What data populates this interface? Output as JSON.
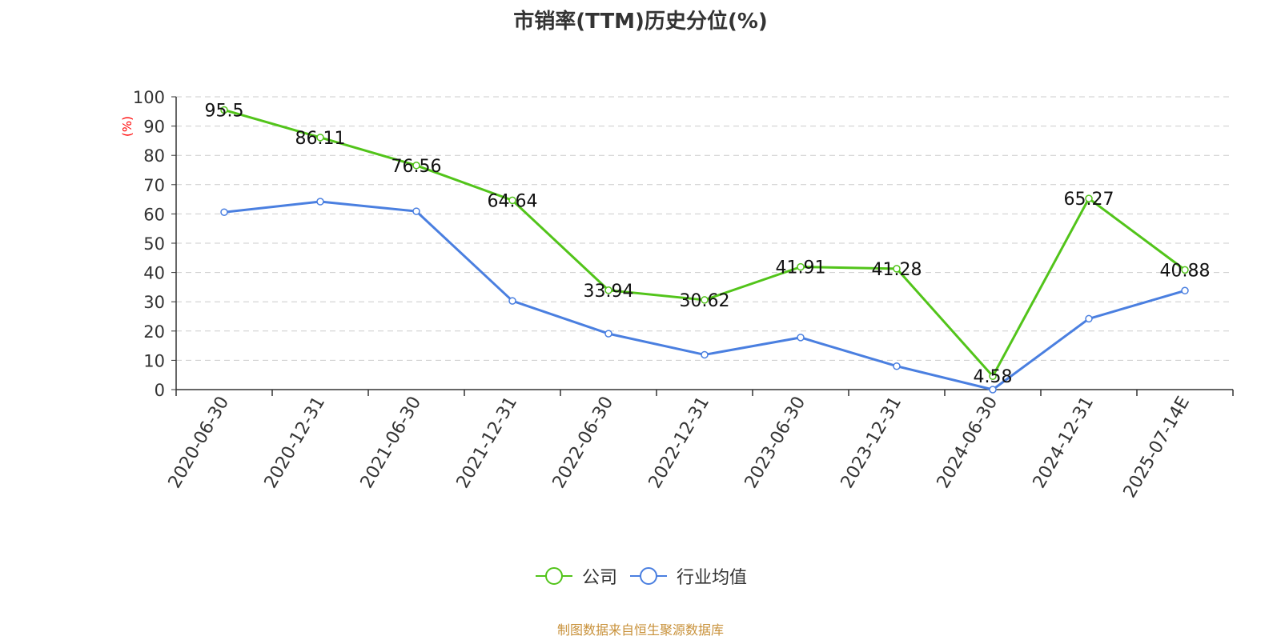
{
  "chart_data": {
    "type": "line",
    "title": "市销率(TTM)历史分位(%)",
    "ylabel": "(%)",
    "xlabel": "",
    "ylim": [
      0,
      100
    ],
    "yticks": [
      0,
      10,
      20,
      30,
      40,
      50,
      60,
      70,
      80,
      90,
      100
    ],
    "grid": true,
    "legend_position": "bottom-center",
    "categories": [
      "2020-06-30",
      "2020-12-31",
      "2021-06-30",
      "2021-12-31",
      "2022-06-30",
      "2022-12-31",
      "2023-06-30",
      "2023-12-31",
      "2024-06-30",
      "2024-12-31",
      "2025-07-14E"
    ],
    "series": [
      {
        "name": "公司",
        "color": "#52c41a",
        "values": [
          95.5,
          86.11,
          76.56,
          64.64,
          33.94,
          30.62,
          41.91,
          41.28,
          4.58,
          65.27,
          40.88
        ],
        "data_labels": [
          "95.5",
          "86.11",
          "76.56",
          "64.64",
          "33.94",
          "30.62",
          "41.91",
          "41.28",
          "4.58",
          "65.27",
          "40.88"
        ]
      },
      {
        "name": "行业均值",
        "color": "#4a7fe0",
        "values": [
          60.6,
          64.2,
          60.9,
          30.3,
          19.1,
          11.9,
          17.8,
          8.0,
          0.0,
          24.2,
          33.8
        ]
      }
    ]
  },
  "source": "制图数据来自恒生聚源数据库",
  "colors": {
    "source_text": "#c8913a",
    "axis_label": "#ff0000",
    "grid": "#cccccc",
    "axis": "#333333"
  }
}
